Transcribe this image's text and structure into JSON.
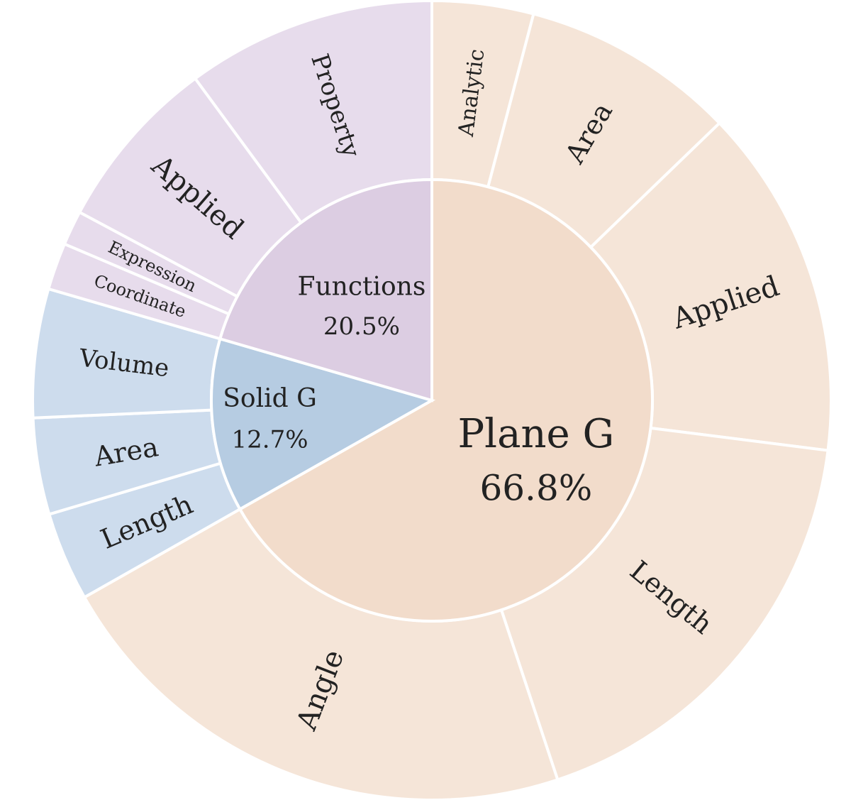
{
  "chart_data": {
    "type": "sunburst",
    "title": "",
    "inner": [
      {
        "name": "Plane G",
        "percent_label": "66.8%",
        "value": 66.8,
        "color": "#f2dccb"
      },
      {
        "name": "Solid G",
        "percent_label": "12.7%",
        "value": 12.7,
        "color": "#b6cce2"
      },
      {
        "name": "Functions",
        "percent_label": "20.5%",
        "value": 20.5,
        "color": "#dccde2"
      }
    ],
    "outer": [
      {
        "parent": "Plane G",
        "name": "Analytic",
        "value": 4.1,
        "color": "#f5e5d8"
      },
      {
        "parent": "Plane G",
        "name": "Area",
        "value": 8.7,
        "color": "#f5e5d8"
      },
      {
        "parent": "Plane G",
        "name": "Applied",
        "value": 14.2,
        "color": "#f5e5d8"
      },
      {
        "parent": "Plane G",
        "name": "Length",
        "value": 17.9,
        "color": "#f5e5d8"
      },
      {
        "parent": "Plane G",
        "name": "Angle",
        "value": 21.9,
        "color": "#f5e5d8"
      },
      {
        "parent": "Solid G",
        "name": "Length",
        "value": 3.6,
        "color": "#cddced"
      },
      {
        "parent": "Solid G",
        "name": "Area",
        "value": 3.9,
        "color": "#cddced"
      },
      {
        "parent": "Solid G",
        "name": "Volume",
        "value": 5.2,
        "color": "#cddced"
      },
      {
        "parent": "Functions",
        "name": "Coordinate",
        "value": 1.9,
        "color": "#e7dcec"
      },
      {
        "parent": "Functions",
        "name": "Expression",
        "value": 1.4,
        "color": "#e7dcec"
      },
      {
        "parent": "Functions",
        "name": "Applied",
        "value": 7.1,
        "color": "#e7dcec"
      },
      {
        "parent": "Functions",
        "name": "Property",
        "value": 10.1,
        "color": "#e7dcec"
      }
    ]
  }
}
